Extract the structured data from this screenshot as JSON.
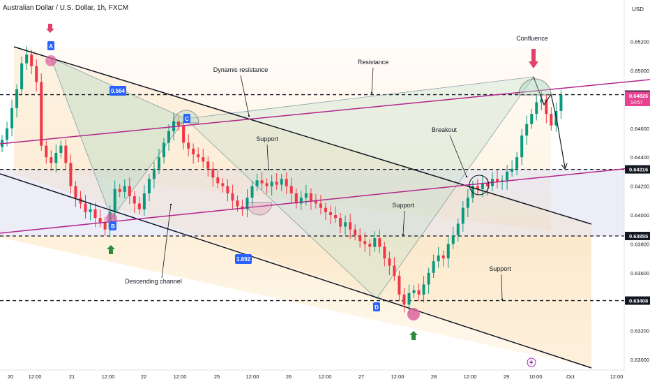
{
  "header": {
    "title": "Australian Dollar / U.S. Dollar, 1h, FXCM",
    "currency": "USD"
  },
  "chart_data": {
    "type": "candlestick",
    "symbol": "Australian Dollar / U.S. Dollar",
    "interval": "1h",
    "source": "FXCM",
    "ylim": [
      0.6295,
      0.6535
    ],
    "y_ticks": [
      "0.65200",
      "0.65000",
      "0.64800",
      "0.64600",
      "0.64400",
      "0.64200",
      "0.64000",
      "0.63800",
      "0.63600",
      "0.63200",
      "0.63000"
    ],
    "x_ticks": [
      "20",
      "12:00",
      "21",
      "12:00",
      "22",
      "12:00",
      "25",
      "12:00",
      "26",
      "12:00",
      "27",
      "12:00",
      "28",
      "12:00",
      "29",
      "10:00",
      "Oct",
      "12:00"
    ],
    "price_levels": [
      "0.64833",
      "0.64316",
      "0.63855",
      "0.63408"
    ],
    "current_price": "0.64826",
    "countdown": "14:57",
    "close_path": [
      0.6452,
      0.646,
      0.6474,
      0.6487,
      0.6505,
      0.6511,
      0.6503,
      0.6492,
      0.6448,
      0.644,
      0.6436,
      0.6443,
      0.6448,
      0.6436,
      0.642,
      0.6412,
      0.6408,
      0.6402,
      0.6404,
      0.6398,
      0.6395,
      0.639,
      0.6402,
      0.6418,
      0.6416,
      0.642,
      0.6413,
      0.6408,
      0.6404,
      0.6415,
      0.6425,
      0.6432,
      0.644,
      0.645,
      0.6458,
      0.6465,
      0.6462,
      0.645,
      0.6446,
      0.6442,
      0.644,
      0.6437,
      0.6432,
      0.6426,
      0.6422,
      0.642,
      0.6415,
      0.641,
      0.6406,
      0.6404,
      0.6412,
      0.642,
      0.6424,
      0.6422,
      0.642,
      0.6423,
      0.6421,
      0.6425,
      0.642,
      0.6415,
      0.6408,
      0.6412,
      0.6415,
      0.641,
      0.6408,
      0.6405,
      0.6402,
      0.64,
      0.6398,
      0.6392,
      0.6395,
      0.639,
      0.6386,
      0.6382,
      0.638,
      0.6378,
      0.6384,
      0.6378,
      0.637,
      0.6365,
      0.6358,
      0.6345,
      0.6338,
      0.6346,
      0.6348,
      0.6345,
      0.6352,
      0.636,
      0.6368,
      0.6372,
      0.637,
      0.638,
      0.6386,
      0.6394,
      0.6405,
      0.6412,
      0.642,
      0.6418,
      0.6422,
      0.642,
      0.6425,
      0.6423,
      0.6424,
      0.643,
      0.6432,
      0.644,
      0.6455,
      0.6463,
      0.647,
      0.6478,
      0.648,
      0.647,
      0.6462,
      0.6472,
      0.6483
    ],
    "pattern_points": [
      {
        "label": "A"
      },
      {
        "label": "B"
      },
      {
        "label": "C"
      },
      {
        "label": "D"
      }
    ],
    "ratios": [
      "0.564",
      "1.892"
    ],
    "annotations": [
      "Dynamic resistance",
      "Resistance",
      "Confluence",
      "Support",
      "Breakout",
      "Support",
      "Support",
      "Descending channel"
    ]
  },
  "colors": {
    "bull": "#089981",
    "bear": "#f23645",
    "channel": "#131722",
    "dynamic_line": "#b0258c",
    "badge_blue": "#2962ff",
    "arrow_red": "#e0406a",
    "arrow_green": "#2e8b3e",
    "circle_pink": "#d95b9a"
  }
}
